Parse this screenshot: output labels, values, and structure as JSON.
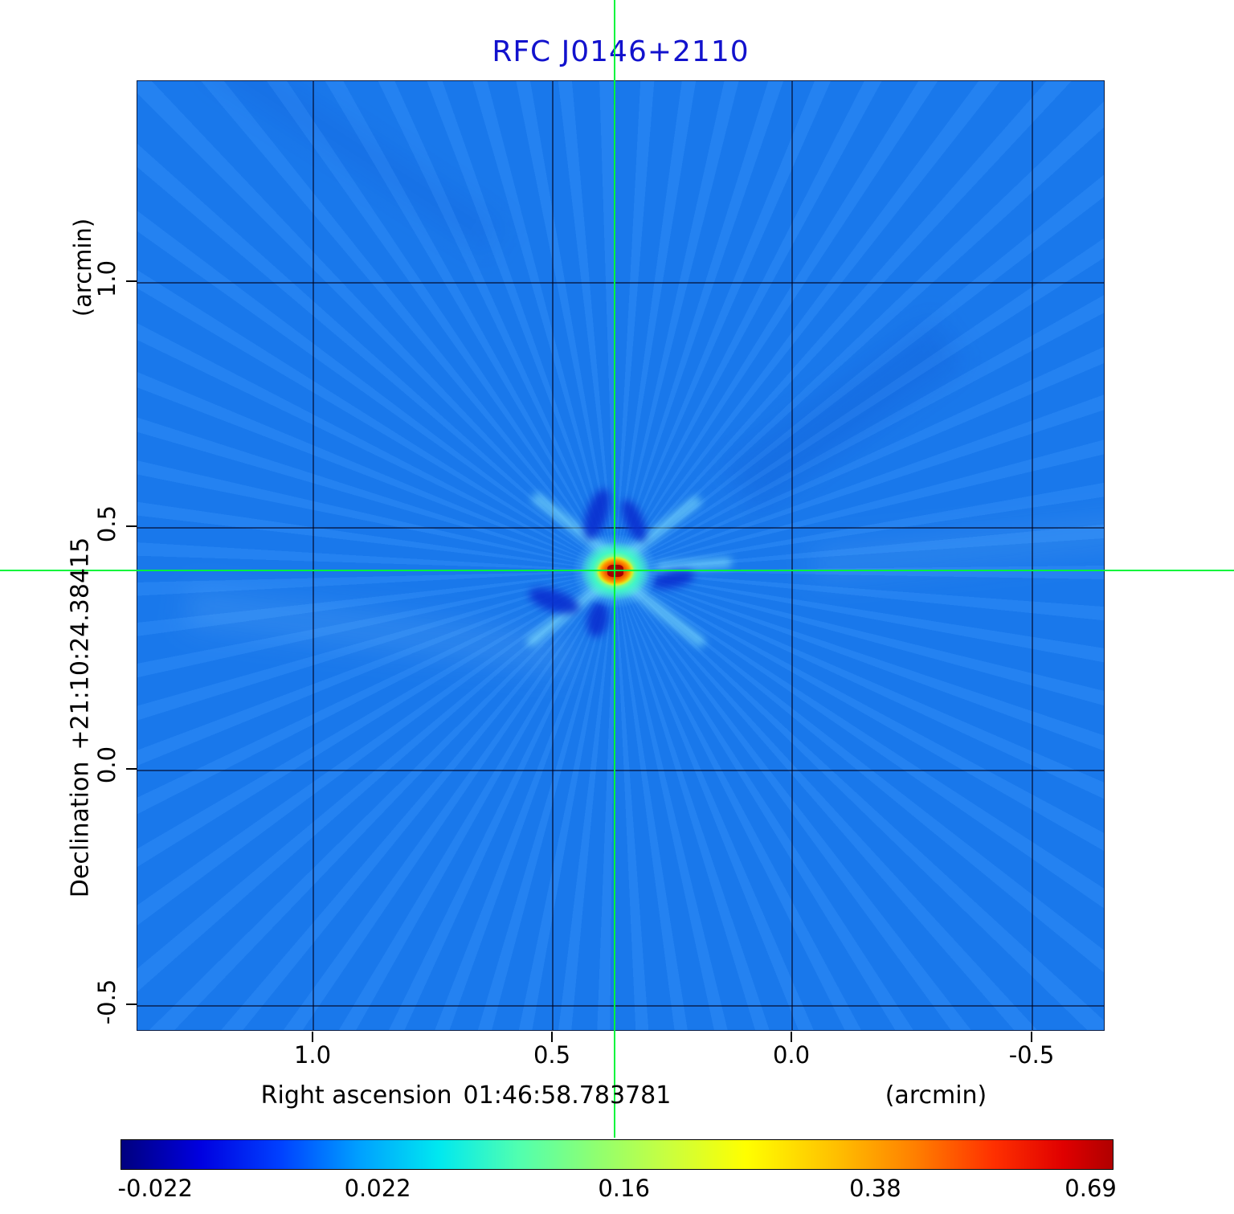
{
  "title": "RFC J0146+2110",
  "colors": {
    "title": "#1212cd",
    "crosshair": "#00f53c",
    "background_sky": "#1a7cf0"
  },
  "x_axis": {
    "label": "Right ascension",
    "value": "01:46:58.783781",
    "unit": "(arcmin)",
    "ticks": [
      "1.0",
      "0.5",
      "0.0",
      "-0.5"
    ]
  },
  "y_axis": {
    "label": "Declination",
    "value": "+21:10:24.38415",
    "unit": "(arcmin)",
    "ticks": [
      "1.0",
      "0.5",
      "0.0",
      "-0.5"
    ]
  },
  "colorbar": {
    "ticks": [
      "-0.022",
      "0.022",
      "0.16",
      "0.38",
      "0.69"
    ]
  },
  "chart_data": {
    "type": "heatmap",
    "title": "RFC J0146+2110",
    "xlabel": "Right ascension 01:46:58.783781 (arcmin)",
    "ylabel": "Declination +21:10:24.38415 (arcmin)",
    "xlim": [
      1.37,
      -0.65
    ],
    "ylim": [
      -0.55,
      1.41
    ],
    "x_ticks": [
      1.0,
      0.5,
      0.0,
      -0.5
    ],
    "y_ticks": [
      1.0,
      0.5,
      0.0,
      -0.5
    ],
    "grid": true,
    "colormap": "jet",
    "value_range": [
      -0.022,
      0.69
    ],
    "colorbar_ticks": [
      -0.022,
      0.022,
      0.16,
      0.38,
      0.69
    ],
    "background_value": 0.0,
    "peak": {
      "x_arcmin": 0.37,
      "y_arcmin": 0.41,
      "value": 0.69
    },
    "crosshair": {
      "x_arcmin": 0.37,
      "y_arcmin": 0.41,
      "color": "#00f53c"
    },
    "description": "Radio interferometric image: flat blue background near 0 Jy with a compact bright source (red core, yellow-green halo) at the crosshair position, dark-blue negative sidelobes forming a star pattern around it, and faint radial streak artifacts."
  }
}
